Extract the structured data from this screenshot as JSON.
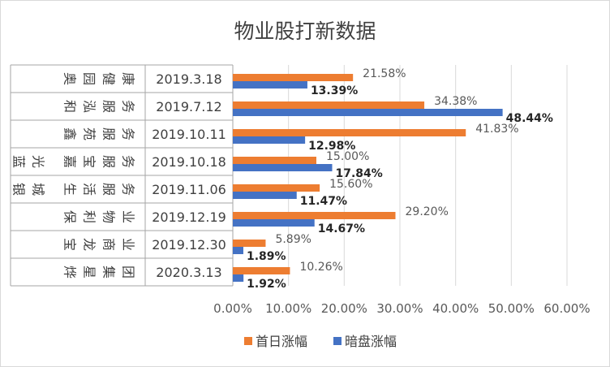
{
  "chart_data": {
    "type": "bar",
    "orientation": "horizontal",
    "title": "物业股打新数据",
    "categories": [
      {
        "name": "奥园健康",
        "date": "2019.3.18"
      },
      {
        "name": "和泓服务",
        "date": "2019.7.12"
      },
      {
        "name": "鑫苑服务",
        "date": "2019.10.11"
      },
      {
        "name": "蓝光嘉宝服务",
        "date": "2019.10.18"
      },
      {
        "name": "银城生活服务",
        "date": "2019.11.06"
      },
      {
        "name": "保利物业",
        "date": "2019.12.19"
      },
      {
        "name": "宝龙商业",
        "date": "2019.12.30"
      },
      {
        "name": "烨星集团",
        "date": "2020.3.13"
      }
    ],
    "series": [
      {
        "name": "首日涨幅",
        "color": "#ed7d31",
        "values": [
          21.58,
          34.38,
          41.83,
          15.0,
          15.6,
          29.2,
          5.89,
          10.26
        ],
        "labels": [
          "21.58%",
          "34.38%",
          "41.83%",
          "15.00%",
          "15.60%",
          "29.20%",
          "5.89%",
          "10.26%"
        ]
      },
      {
        "name": "暗盘涨幅",
        "color": "#4472c4",
        "values": [
          13.39,
          48.44,
          12.98,
          17.84,
          11.47,
          14.67,
          1.89,
          1.92
        ],
        "labels": [
          "13.39%",
          "48.44%",
          "12.98%",
          "17.84%",
          "11.47%",
          "14.67%",
          "1.89%",
          "1.92%"
        ]
      }
    ],
    "xlim": [
      0,
      60
    ],
    "xticks": [
      "0.00%",
      "10.00%",
      "20.00%",
      "30.00%",
      "40.00%",
      "50.00%",
      "60.00%"
    ],
    "grid": true,
    "legend": "bottom"
  }
}
